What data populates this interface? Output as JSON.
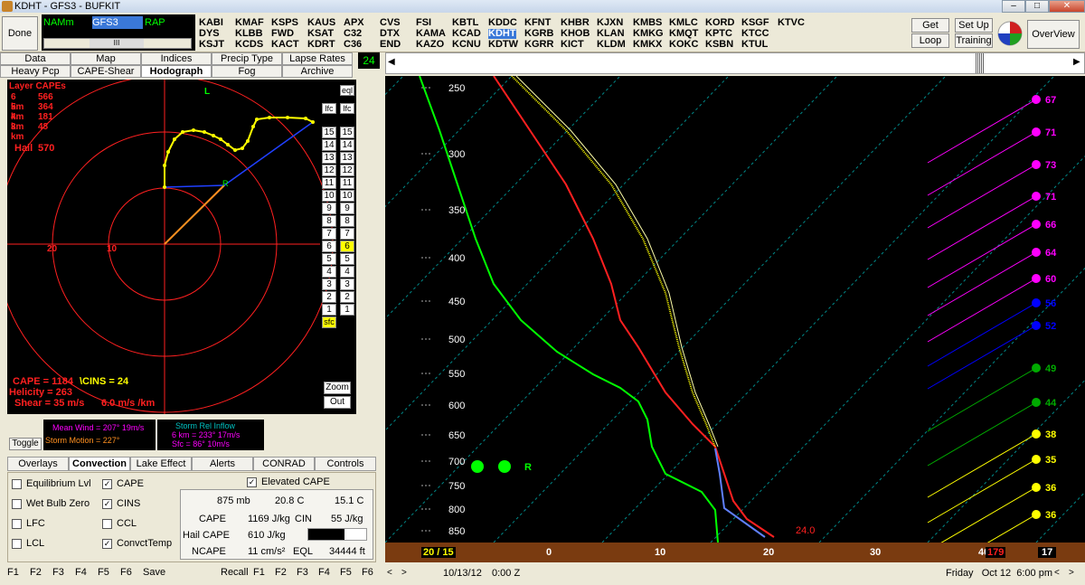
{
  "window": {
    "title": "KDHT - GFS3 - BUFKIT",
    "minimize": "–",
    "maximize": "□",
    "close": "✕"
  },
  "toolbar": {
    "done": "Done",
    "models": [
      "NAMm",
      "GFS3",
      "RAP"
    ],
    "selected_model": "GFS3",
    "scroll_thumb": "III",
    "stations": [
      [
        "KABI",
        "DYS",
        "KSJT"
      ],
      [
        "KMAF",
        "KLBB",
        "KCDS"
      ],
      [
        "KSPS",
        "FWD",
        "KACT"
      ],
      [
        "KAUS",
        "KSAT",
        "KDRT"
      ],
      [
        "APX",
        "C32",
        "C36"
      ],
      [
        "CVS",
        "DTX",
        "END"
      ],
      [
        "FSI",
        "KAMA",
        "KAZO"
      ],
      [
        "KBTL",
        "KCAD",
        "KCNU"
      ],
      [
        "KDDC",
        "KDHT",
        "KDTW"
      ],
      [
        "KFNT",
        "KGRB",
        "KGRR"
      ],
      [
        "KHBR",
        "KHOB",
        "KICT"
      ],
      [
        "KJXN",
        "KLAN",
        "KLDM"
      ],
      [
        "KMBS",
        "KMKG",
        "KMKX"
      ],
      [
        "KMLC",
        "KMQT",
        "KOKC"
      ],
      [
        "KORD",
        "KPTC",
        "KSBN"
      ],
      [
        "KSGF",
        "KTCC",
        "KTUL"
      ],
      [
        "KTVC",
        "",
        ""
      ]
    ],
    "selected_station": "KDHT",
    "get_data": "Get Data",
    "loop": "Loop",
    "set_up": "Set Up",
    "training": "Training",
    "overview": "OverView"
  },
  "tabs_top": {
    "row1": [
      "Data",
      "Map",
      "Indices",
      "Precip Type",
      "Lapse Rates"
    ],
    "row2": [
      "Heavy Pcp",
      "CAPE-Shear",
      "Hodograph",
      "Fog",
      "Archive"
    ],
    "active": "Hodograph",
    "frame": "24"
  },
  "hodograph": {
    "layer_title": "Layer CAPEs",
    "layers": [
      {
        "label": "6 km",
        "value": "566"
      },
      {
        "label": "5 km",
        "value": "364"
      },
      {
        "label": "4 km",
        "value": "181"
      },
      {
        "label": "3 km",
        "value": "48"
      }
    ],
    "hail_label": "Hail",
    "hail_value": "570",
    "ring_labels": [
      "20",
      "10"
    ],
    "marker_L": "L",
    "marker_R": "R",
    "cape_text": "CAPE = 1184",
    "cins_text": "\\CINS = 24",
    "helicity_text": "Helicity = 263",
    "shear_text": "Shear = 35 m/s",
    "shear_rate": "6.0 m/s /km",
    "eql": "eql",
    "lfc": "lfc",
    "levels": [
      "15",
      "14",
      "13",
      "12",
      "11",
      "10",
      "9",
      "8",
      "7",
      "6",
      "5",
      "4",
      "3",
      "2",
      "1"
    ],
    "highlighted_level": "6",
    "sfc": "sfc",
    "zoom": "Zoom",
    "out": "Out"
  },
  "wind": {
    "toggle": "Toggle",
    "mean_wind": "Mean Wind = 207° 19m/s",
    "storm_motion": "Storm Motion = 227°",
    "inflow_title": "Storm Rel Inflow",
    "inflow_6km": "6 km = 233° 17m/s",
    "inflow_sfc": "Sfc = 86° 10m/s"
  },
  "tabs_bottom": {
    "items": [
      "Overlays",
      "Convection",
      "Lake Effect",
      "Alerts",
      "CONRAD",
      "Controls"
    ],
    "active": "Convection"
  },
  "convection": {
    "checkboxes": [
      {
        "label": "Equilibrium Lvl",
        "checked": false
      },
      {
        "label": "Wet Bulb Zero",
        "checked": false
      },
      {
        "label": "LFC",
        "checked": false
      },
      {
        "label": "LCL",
        "checked": false
      },
      {
        "label": "CAPE",
        "checked": true
      },
      {
        "label": "CINS",
        "checked": true
      },
      {
        "label": "CCL",
        "checked": false
      },
      {
        "label": "ConvctTemp",
        "checked": true
      }
    ],
    "elevated_cape": "Elevated CAPE",
    "pressure": "875 mb",
    "temp": "20.8 C",
    "dewpt": "15.1 C",
    "cape_label": "CAPE",
    "cape_value": "1169 J/kg",
    "cin_label": "CIN",
    "cin_value": "55 J/kg",
    "hail_label": "Hail CAPE",
    "hail_value": "610 J/kg",
    "ncape_label": "NCAPE",
    "ncape_value": "11 cm/s²",
    "eql_label": "EQL",
    "eql_value": "34444 ft"
  },
  "fkeys_left": [
    "F1",
    "F2",
    "F3",
    "F4",
    "F5",
    "F6",
    "Save"
  ],
  "fkeys_right": [
    "Recall",
    "F1",
    "F2",
    "F3",
    "F4",
    "F5",
    "F6"
  ],
  "skewt": {
    "pressures": [
      "250",
      "300",
      "350",
      "400",
      "450",
      "500",
      "550",
      "600",
      "650",
      "700",
      "750",
      "800",
      "850"
    ],
    "temp_ticks": [
      "20 / 15",
      "0",
      "10",
      "20",
      "30",
      "40"
    ],
    "temp_ticks_values": [
      null,
      0,
      10,
      20,
      30,
      40
    ],
    "sfc_temp": "24.0",
    "wind_barbs": [
      {
        "value": "67",
        "color": "#ff00ff"
      },
      {
        "value": "71",
        "color": "#ff00ff"
      },
      {
        "value": "73",
        "color": "#ff00ff"
      },
      {
        "value": "71",
        "color": "#ff00ff"
      },
      {
        "value": "66",
        "color": "#ff00ff"
      },
      {
        "value": "64",
        "color": "#ff00ff"
      },
      {
        "value": "60",
        "color": "#ff00ff"
      },
      {
        "value": "56",
        "color": "#0000ff"
      },
      {
        "value": "52",
        "color": "#0000ff"
      },
      {
        "value": "49",
        "color": "#00aa00"
      },
      {
        "value": "44",
        "color": "#00aa00"
      },
      {
        "value": "38",
        "color": "#ffff00"
      },
      {
        "value": "35",
        "color": "#ffff00"
      },
      {
        "value": "36",
        "color": "#ffff00"
      },
      {
        "value": "36",
        "color": "#ffff00"
      },
      {
        "value": "19",
        "color": "#ff2020"
      },
      {
        "value": "17",
        "color": "#ff2020"
      }
    ],
    "r_label": "R",
    "right_box_1": "179",
    "right_box_2": "17"
  },
  "status": {
    "date": "10/13/12",
    "time": "0:00 Z",
    "local": "Friday   Oct 12  6:00 pm"
  }
}
